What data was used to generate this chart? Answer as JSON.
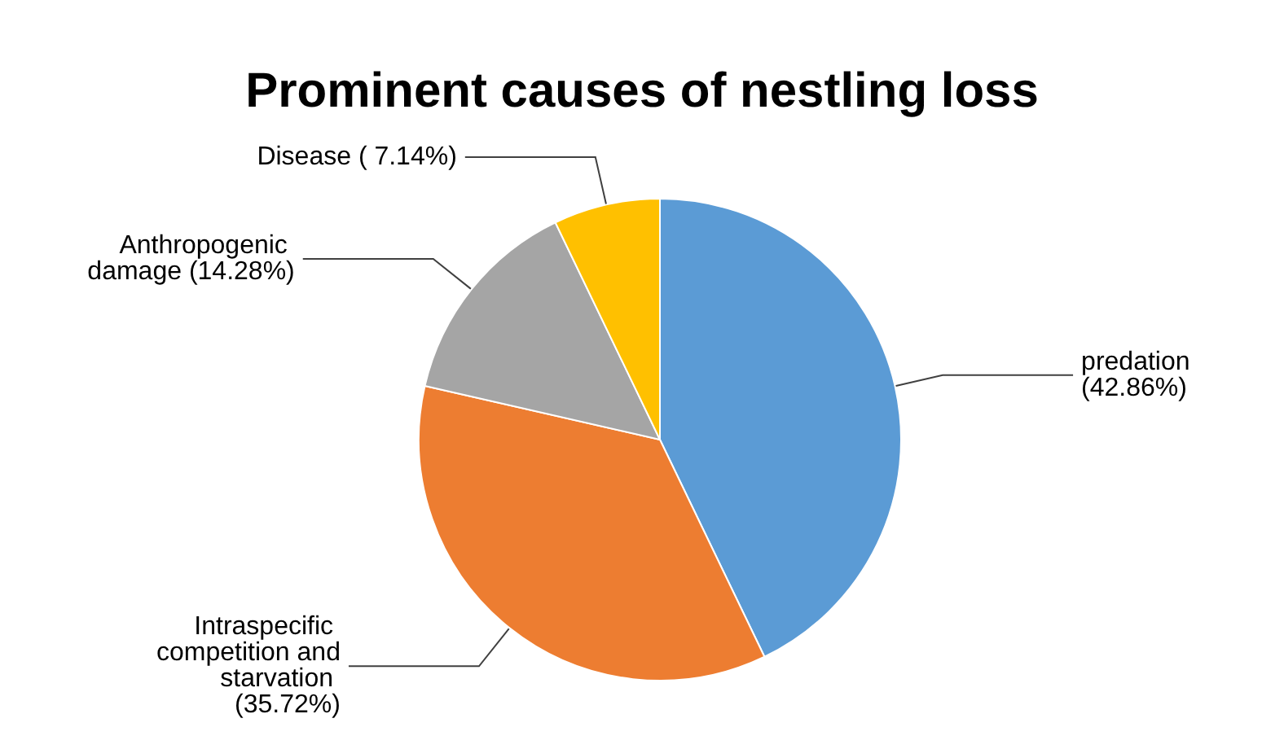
{
  "chart_data": {
    "type": "pie",
    "title": "Prominent causes of nestling loss",
    "categories": [
      "predation",
      "Intraspecific competition and starvation",
      "Anthropogenic damage",
      "Disease"
    ],
    "values": [
      42.86,
      35.72,
      14.28,
      7.14
    ],
    "value_labels": [
      "(42.86%)",
      "(35.72%)",
      "(14.28%)",
      "( 7.14%)"
    ],
    "colors": [
      "#5b9bd5",
      "#ed7d31",
      "#a5a5a5",
      "#ffc000"
    ],
    "legend": false
  }
}
